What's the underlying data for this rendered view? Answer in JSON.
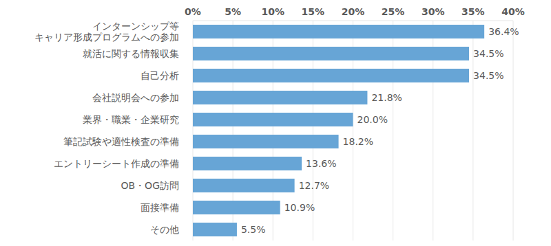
{
  "chart_data": {
    "type": "bar",
    "orientation": "horizontal",
    "categories": [
      "インターンシップ等\nキャリア形成プログラムへの参加",
      "就活に関する情報収集",
      "自己分析",
      "会社説明会への参加",
      "業界・職業・企業研究",
      "筆記試験や適性検査の準備",
      "エントリーシート作成の準備",
      "OB・OG訪問",
      "面接準備",
      "その他"
    ],
    "values": [
      36.4,
      34.5,
      34.5,
      21.8,
      20.0,
      18.2,
      13.6,
      12.7,
      10.9,
      5.5
    ],
    "value_labels": [
      "36.4%",
      "34.5%",
      "34.5%",
      "21.8%",
      "20.0%",
      "18.2%",
      "13.6%",
      "12.7%",
      "10.9%",
      "5.5%"
    ],
    "color": "#67a5d6",
    "xlim": [
      0,
      40
    ],
    "xticks": [
      {
        "value": 0,
        "label": "0%"
      },
      {
        "value": 5,
        "label": "5%"
      },
      {
        "value": 10,
        "label": "10%"
      },
      {
        "value": 15,
        "label": "15%"
      },
      {
        "value": 20,
        "label": "20%"
      },
      {
        "value": 25,
        "label": "25%"
      },
      {
        "value": 30,
        "label": "30%"
      },
      {
        "value": 35,
        "label": "35%"
      },
      {
        "value": 40,
        "label": "40%"
      }
    ],
    "grid": true,
    "data_labels": true
  }
}
